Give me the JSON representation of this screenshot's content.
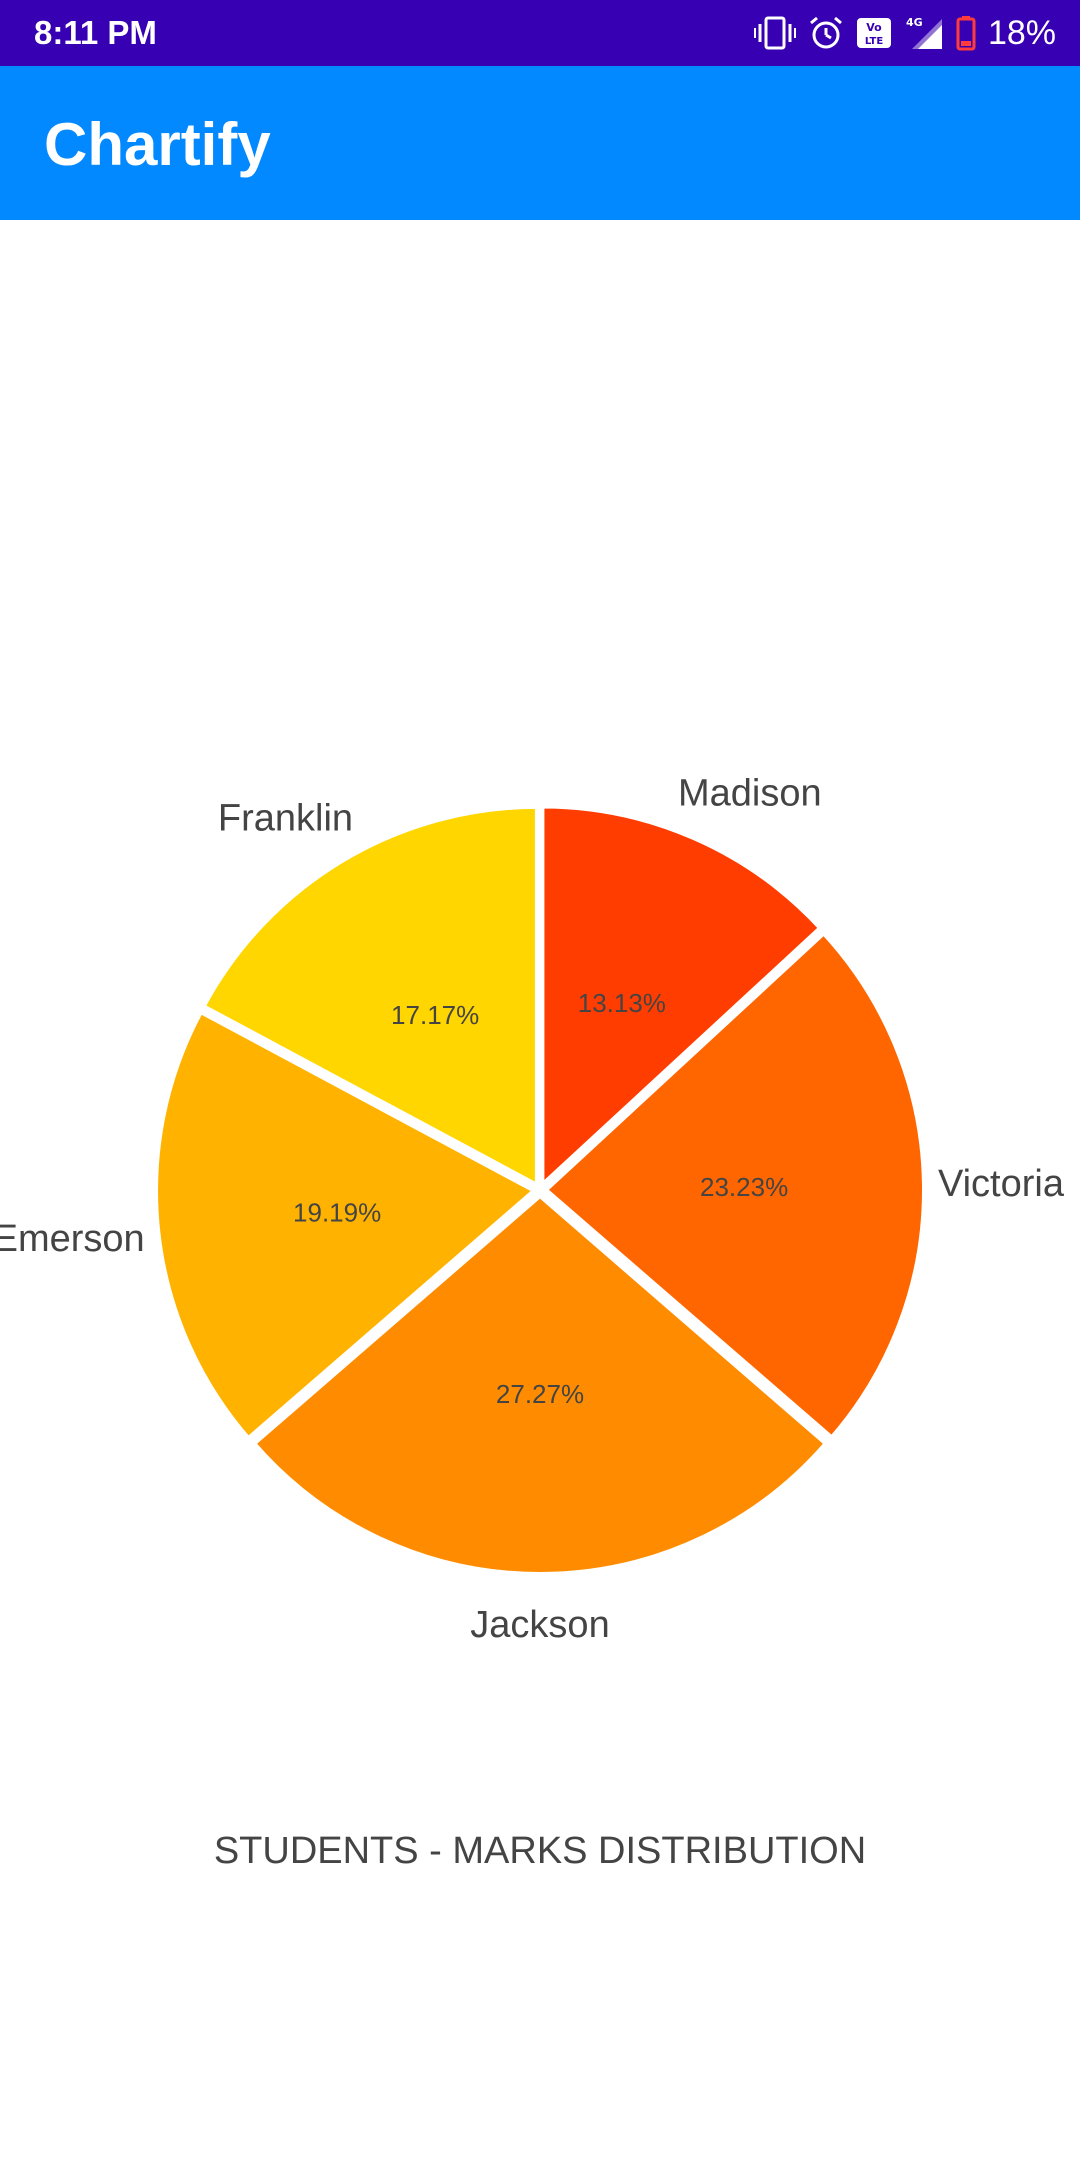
{
  "status_bar": {
    "time": "8:11 PM",
    "battery_percent": "18%",
    "icons": [
      "vibrate-icon",
      "alarm-icon",
      "volte-icon",
      "signal-4g-icon",
      "battery-low-icon"
    ],
    "signal_label": "4G",
    "volte_label": "Vo LTE",
    "background": "#3700b3"
  },
  "app_bar": {
    "title": "Chartify",
    "background": "#0288ff"
  },
  "chart_data": {
    "type": "pie",
    "description": "STUDENTS - MARKS DISTRIBUTION",
    "labels": [
      "Madison",
      "Victoria",
      "Jackson",
      "Emerson",
      "Franklin"
    ],
    "values": [
      13.13,
      23.23,
      27.27,
      19.19,
      17.17
    ],
    "value_labels": [
      "13.13%",
      "23.23%",
      "27.27%",
      "19.19%",
      "17.17%"
    ],
    "colors": [
      "#ff3d00",
      "#ff6600",
      "#ff8c00",
      "#ffb300",
      "#ffd600"
    ],
    "start": "12 o'clock, clockwise",
    "legend": "none"
  }
}
